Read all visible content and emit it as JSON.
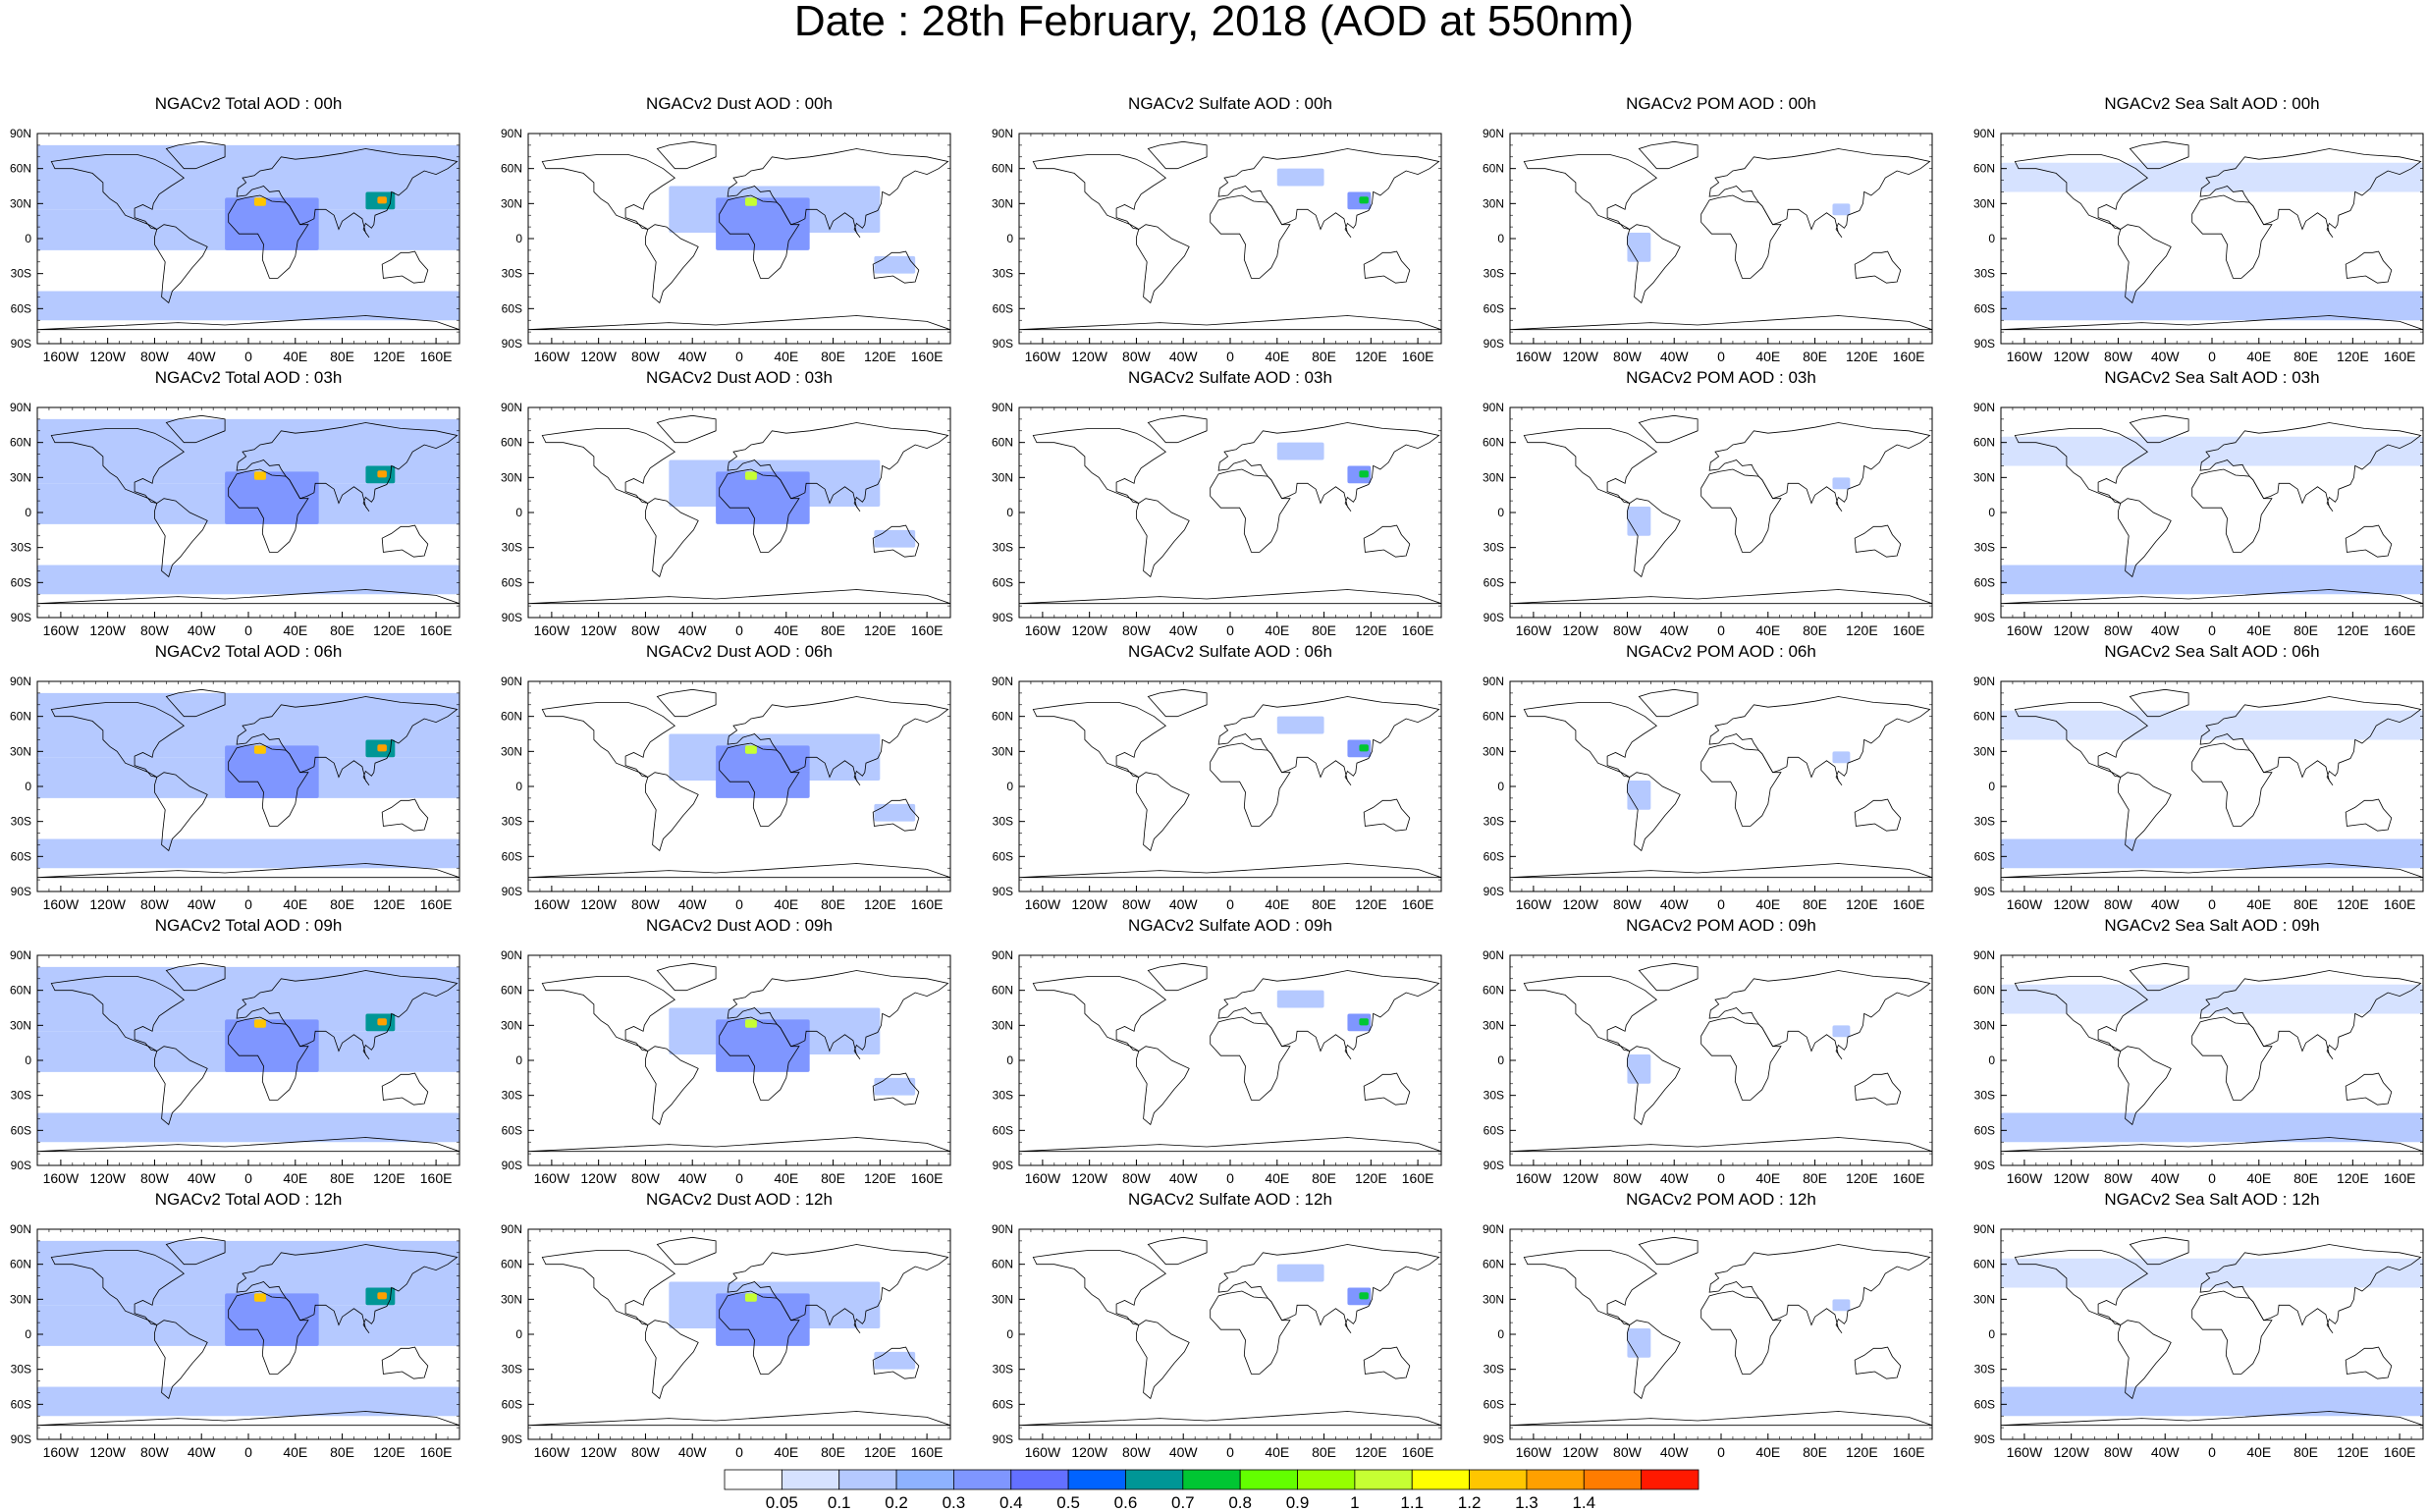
{
  "figure": {
    "title": "Date : 28th February, 2018 (AOD at 550nm)"
  },
  "chart_data": {
    "type": "heatmap",
    "title": "Date : 28th February, 2018 (AOD at 550nm)",
    "variable": "AOD at 550nm",
    "date": "28th February, 2018",
    "forecast_hours": [
      "00h",
      "03h",
      "06h",
      "09h",
      "12h"
    ],
    "species": [
      "Total",
      "Dust",
      "Sulfate",
      "POM",
      "Sea Salt"
    ],
    "panel_titles": [
      [
        "NGACv2 Total AOD : 00h",
        "NGACv2 Dust AOD : 00h",
        "NGACv2 Sulfate AOD : 00h",
        "NGACv2 POM AOD : 00h",
        "NGACv2 Sea Salt AOD : 00h"
      ],
      [
        "NGACv2 Total AOD : 03h",
        "NGACv2 Dust AOD : 03h",
        "NGACv2 Sulfate AOD : 03h",
        "NGACv2 POM AOD : 03h",
        "NGACv2 Sea Salt AOD : 03h"
      ],
      [
        "NGACv2 Total AOD : 06h",
        "NGACv2 Dust AOD : 06h",
        "NGACv2 Sulfate AOD : 06h",
        "NGACv2 POM AOD : 06h",
        "NGACv2 Sea Salt AOD : 06h"
      ],
      [
        "NGACv2 Total AOD : 09h",
        "NGACv2 Dust AOD : 09h",
        "NGACv2 Sulfate AOD : 09h",
        "NGACv2 POM AOD : 09h",
        "NGACv2 Sea Salt  AOD : 09h"
      ],
      [
        "NGACv2 Total AOD  : 12h",
        "NGACv2 Dust AOD : 12h",
        "NGACv2 Sulfate AOD : 12h",
        "NGACv2 POM  AOD : 12h",
        "NGACv2 Sea Salt  AOD : 12h"
      ]
    ],
    "lat_ticks": [
      "90N",
      "60N",
      "30N",
      "0",
      "30S",
      "60S",
      "90S"
    ],
    "lat_values": [
      90,
      60,
      30,
      0,
      -30,
      -60,
      -90
    ],
    "lon_ticks": [
      "160W",
      "120W",
      "80W",
      "40W",
      "0",
      "40E",
      "80E",
      "120E",
      "160E"
    ],
    "lon_values": [
      -160,
      -120,
      -80,
      -40,
      0,
      40,
      80,
      120,
      160
    ],
    "xlim": [
      -180,
      180
    ],
    "ylim": [
      -90,
      90
    ],
    "levels": [
      0.05,
      0.1,
      0.2,
      0.3,
      0.4,
      0.5,
      0.6,
      0.7,
      0.8,
      0.9,
      1,
      1.1,
      1.2,
      1.3,
      1.4
    ],
    "level_labels": [
      "0.05",
      "0.1",
      "0.2",
      "0.3",
      "0.4",
      "0.5",
      "0.6",
      "0.7",
      "0.8",
      "0.9",
      "1",
      "1.1",
      "1.2",
      "1.3",
      "1.4"
    ],
    "colors": [
      "#ffffff",
      "#d6e2ff",
      "#b5c9ff",
      "#8eb2ff",
      "#7f96ff",
      "#6370ff",
      "#0063ff",
      "#009696",
      "#00c633",
      "#63ff00",
      "#96ff00",
      "#c6ff33",
      "#ffff00",
      "#ffc600",
      "#ffa000",
      "#ff7c00",
      "#ff1900"
    ],
    "aerosol_regions": {
      "Total": [
        {
          "lon": [
            -180,
            180
          ],
          "lat": [
            25,
            80
          ],
          "aod": 0.15
        },
        {
          "lon": [
            -180,
            180
          ],
          "lat": [
            -10,
            25
          ],
          "aod": 0.1
        },
        {
          "lon": [
            -180,
            180
          ],
          "lat": [
            -70,
            -45
          ],
          "aod": 0.15
        },
        {
          "lon": [
            -20,
            60
          ],
          "lat": [
            -10,
            35
          ],
          "aod": 0.35
        },
        {
          "lon": [
            100,
            125
          ],
          "lat": [
            25,
            40
          ],
          "aod": 0.6
        },
        {
          "lon": [
            5,
            15
          ],
          "lat": [
            28,
            35
          ],
          "aod": 1.2
        },
        {
          "lon": [
            110,
            118
          ],
          "lat": [
            30,
            36
          ],
          "aod": 1.3
        }
      ],
      "Dust": [
        {
          "lon": [
            -60,
            120
          ],
          "lat": [
            5,
            45
          ],
          "aod": 0.1
        },
        {
          "lon": [
            -20,
            60
          ],
          "lat": [
            -10,
            35
          ],
          "aod": 0.3
        },
        {
          "lon": [
            5,
            15
          ],
          "lat": [
            28,
            35
          ],
          "aod": 1.0
        },
        {
          "lon": [
            115,
            150
          ],
          "lat": [
            -30,
            -15
          ],
          "aod": 0.1
        }
      ],
      "Sulfate": [
        {
          "lon": [
            40,
            80
          ],
          "lat": [
            45,
            60
          ],
          "aod": 0.1
        },
        {
          "lon": [
            100,
            120
          ],
          "lat": [
            25,
            40
          ],
          "aod": 0.3
        },
        {
          "lon": [
            110,
            118
          ],
          "lat": [
            30,
            36
          ],
          "aod": 0.7
        }
      ],
      "POM": [
        {
          "lon": [
            95,
            110
          ],
          "lat": [
            20,
            30
          ],
          "aod": 0.1
        },
        {
          "lon": [
            -80,
            -60
          ],
          "lat": [
            -20,
            5
          ],
          "aod": 0.1
        }
      ],
      "Sea Salt": [
        {
          "lon": [
            -180,
            180
          ],
          "lat": [
            -70,
            -45
          ],
          "aod": 0.1
        },
        {
          "lon": [
            -180,
            180
          ],
          "lat": [
            40,
            65
          ],
          "aod": 0.08
        },
        {
          "lon": [
            10,
            60
          ],
          "lat": [
            -65,
            -50
          ],
          "aod": 0.15
        }
      ]
    }
  }
}
